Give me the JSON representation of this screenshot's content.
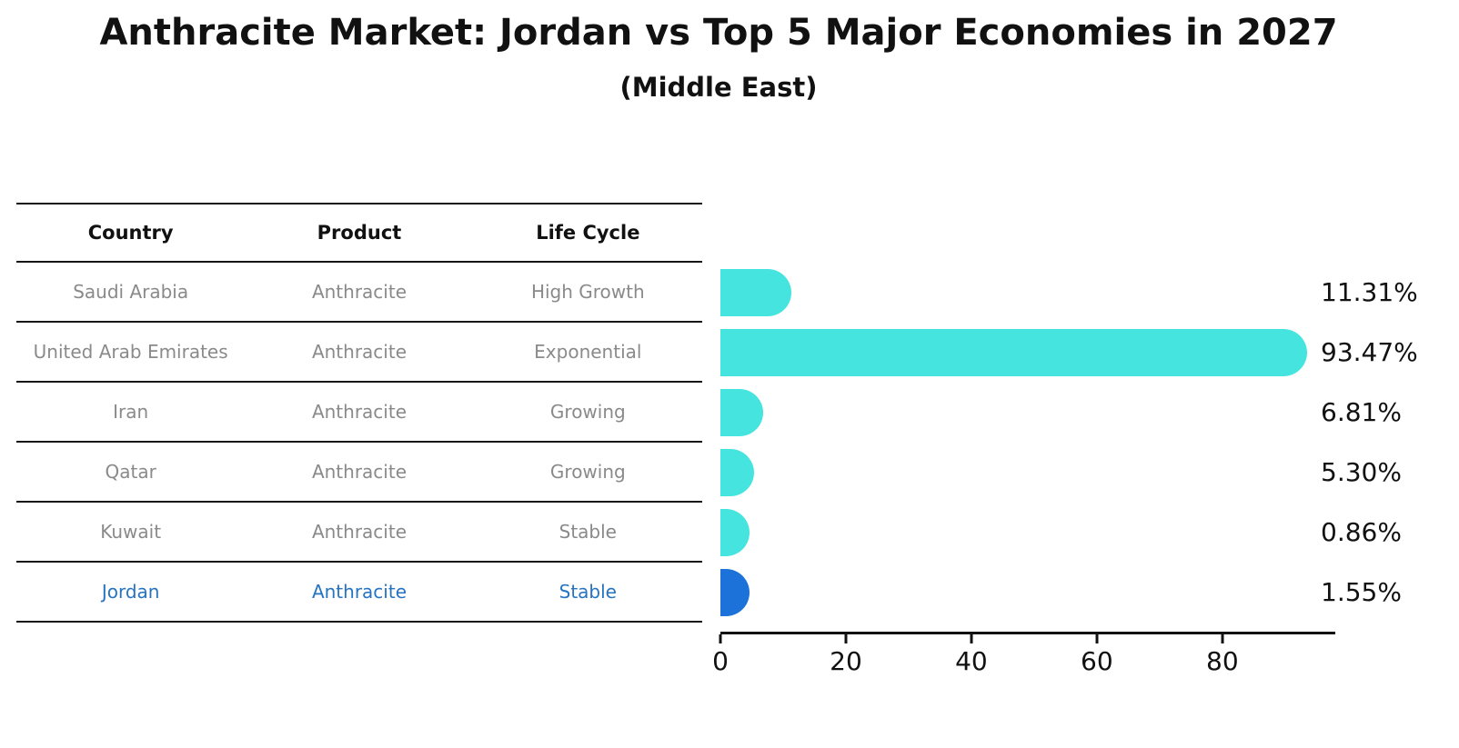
{
  "title": "Anthracite Market: Jordan vs Top 5 Major Economies in 2027",
  "subtitle": "(Middle East)",
  "table": {
    "headers": [
      "Country",
      "Product",
      "Life Cycle"
    ],
    "rows": [
      {
        "country": "Saudi Arabia",
        "product": "Anthracite",
        "life_cycle": "High Growth",
        "highlight": false
      },
      {
        "country": "United Arab Emirates",
        "product": "Anthracite",
        "life_cycle": "Exponential",
        "highlight": false
      },
      {
        "country": "Iran",
        "product": "Anthracite",
        "life_cycle": "Growing",
        "highlight": false
      },
      {
        "country": "Qatar",
        "product": "Anthracite",
        "life_cycle": "Growing",
        "highlight": false
      },
      {
        "country": "Kuwait",
        "product": "Anthracite",
        "life_cycle": "Stable",
        "highlight": false
      },
      {
        "country": "Jordan",
        "product": "Anthracite",
        "life_cycle": "Stable",
        "highlight": true
      }
    ]
  },
  "chart_data": {
    "type": "bar",
    "orientation": "horizontal",
    "title": "Anthracite Market: Jordan vs Top 5 Major Economies in 2027",
    "subtitle": "(Middle East)",
    "categories": [
      "Saudi Arabia",
      "United Arab Emirates",
      "Iran",
      "Qatar",
      "Kuwait",
      "Jordan"
    ],
    "values": [
      11.31,
      93.47,
      6.81,
      5.3,
      0.86,
      1.55
    ],
    "value_labels": [
      "11.31%",
      "93.47%",
      "6.81%",
      "5.30%",
      "0.86%",
      "1.55%"
    ],
    "x_ticks": [
      0,
      20,
      40,
      60,
      80
    ],
    "xlim": [
      0,
      98
    ],
    "axis_max": 98,
    "xlabel": "",
    "ylabel": "",
    "grid": false,
    "legend": false,
    "highlight_index": 5,
    "bar_color_default": "#45E4DF",
    "bar_color_highlight": "#1C72D8",
    "highlight_text_color": "#2673C2",
    "axis_color": "#111111",
    "table_text_color": "#8a8a8a"
  }
}
